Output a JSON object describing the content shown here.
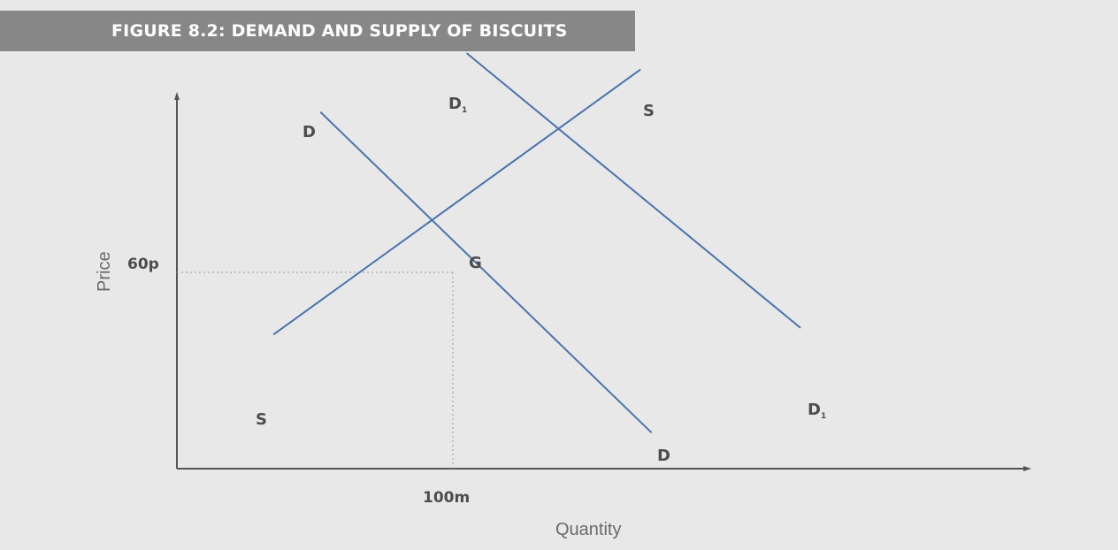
{
  "chart_data": {
    "type": "line",
    "title": "FIGURE 8.2: DEMAND AND SUPPLY OF BISCUITS",
    "xlabel": "Quantity",
    "ylabel": "Price",
    "x_ticks": [
      {
        "value": 100,
        "label": "100m"
      }
    ],
    "y_ticks": [
      {
        "value": 60,
        "label": "60p"
      }
    ],
    "equilibrium": {
      "label": "G",
      "x": 100,
      "y": 60
    },
    "grid": false,
    "series": [
      {
        "name": "D",
        "start_label": "D",
        "end_label": "D",
        "points": [
          {
            "x": 52,
            "y": 109
          },
          {
            "x": 172,
            "y": 11
          }
        ]
      },
      {
        "name": "S",
        "start_label": "S",
        "end_label": "S",
        "points": [
          {
            "x": 35,
            "y": 41
          },
          {
            "x": 168,
            "y": 122
          }
        ]
      },
      {
        "name": "D1",
        "start_label": "D1",
        "end_label": "D1",
        "points": [
          {
            "x": 105,
            "y": 127
          },
          {
            "x": 226,
            "y": 43
          }
        ]
      }
    ],
    "line_color": "#4a73ad"
  }
}
